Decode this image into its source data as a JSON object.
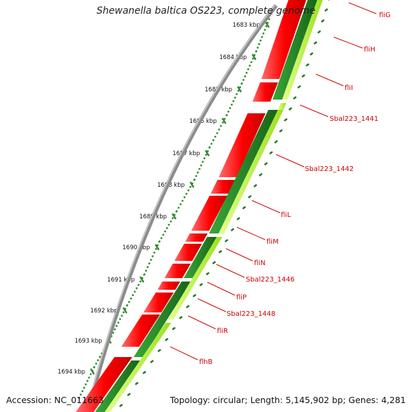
{
  "title": "Shewanella baltica OS223, complete genome",
  "accession": "Accession: NC_011663",
  "topology": "Topology: circular; Length: 5,145,902 bp; Genes: 4,281",
  "ticks": [
    "1683 kbp",
    "1684 kbp",
    "1685 kbp",
    "1686 kbp",
    "1687 kbp",
    "1688 kbp",
    "1689 kbp",
    "1690 kbp",
    "1691 kbp",
    "1692 kbp",
    "1693 kbp",
    "1694 kbp"
  ],
  "genes": [
    "fliG",
    "fliH",
    "fliI",
    "Sbal223_1441",
    "Sbal223_1442",
    "fliL",
    "fliM",
    "fliN",
    "Sbal223_1446",
    "fliP",
    "Sbal223_1448",
    "fliR",
    "flhB"
  ],
  "colors": {
    "backbone": "#8c8c8c",
    "cds_forward": "#ff0000",
    "cds_lower": "#1f7a1f",
    "cds_lower_light": "#adff2f",
    "ruler_dots": "#2e8b2e",
    "label_text": "#cc0000"
  }
}
